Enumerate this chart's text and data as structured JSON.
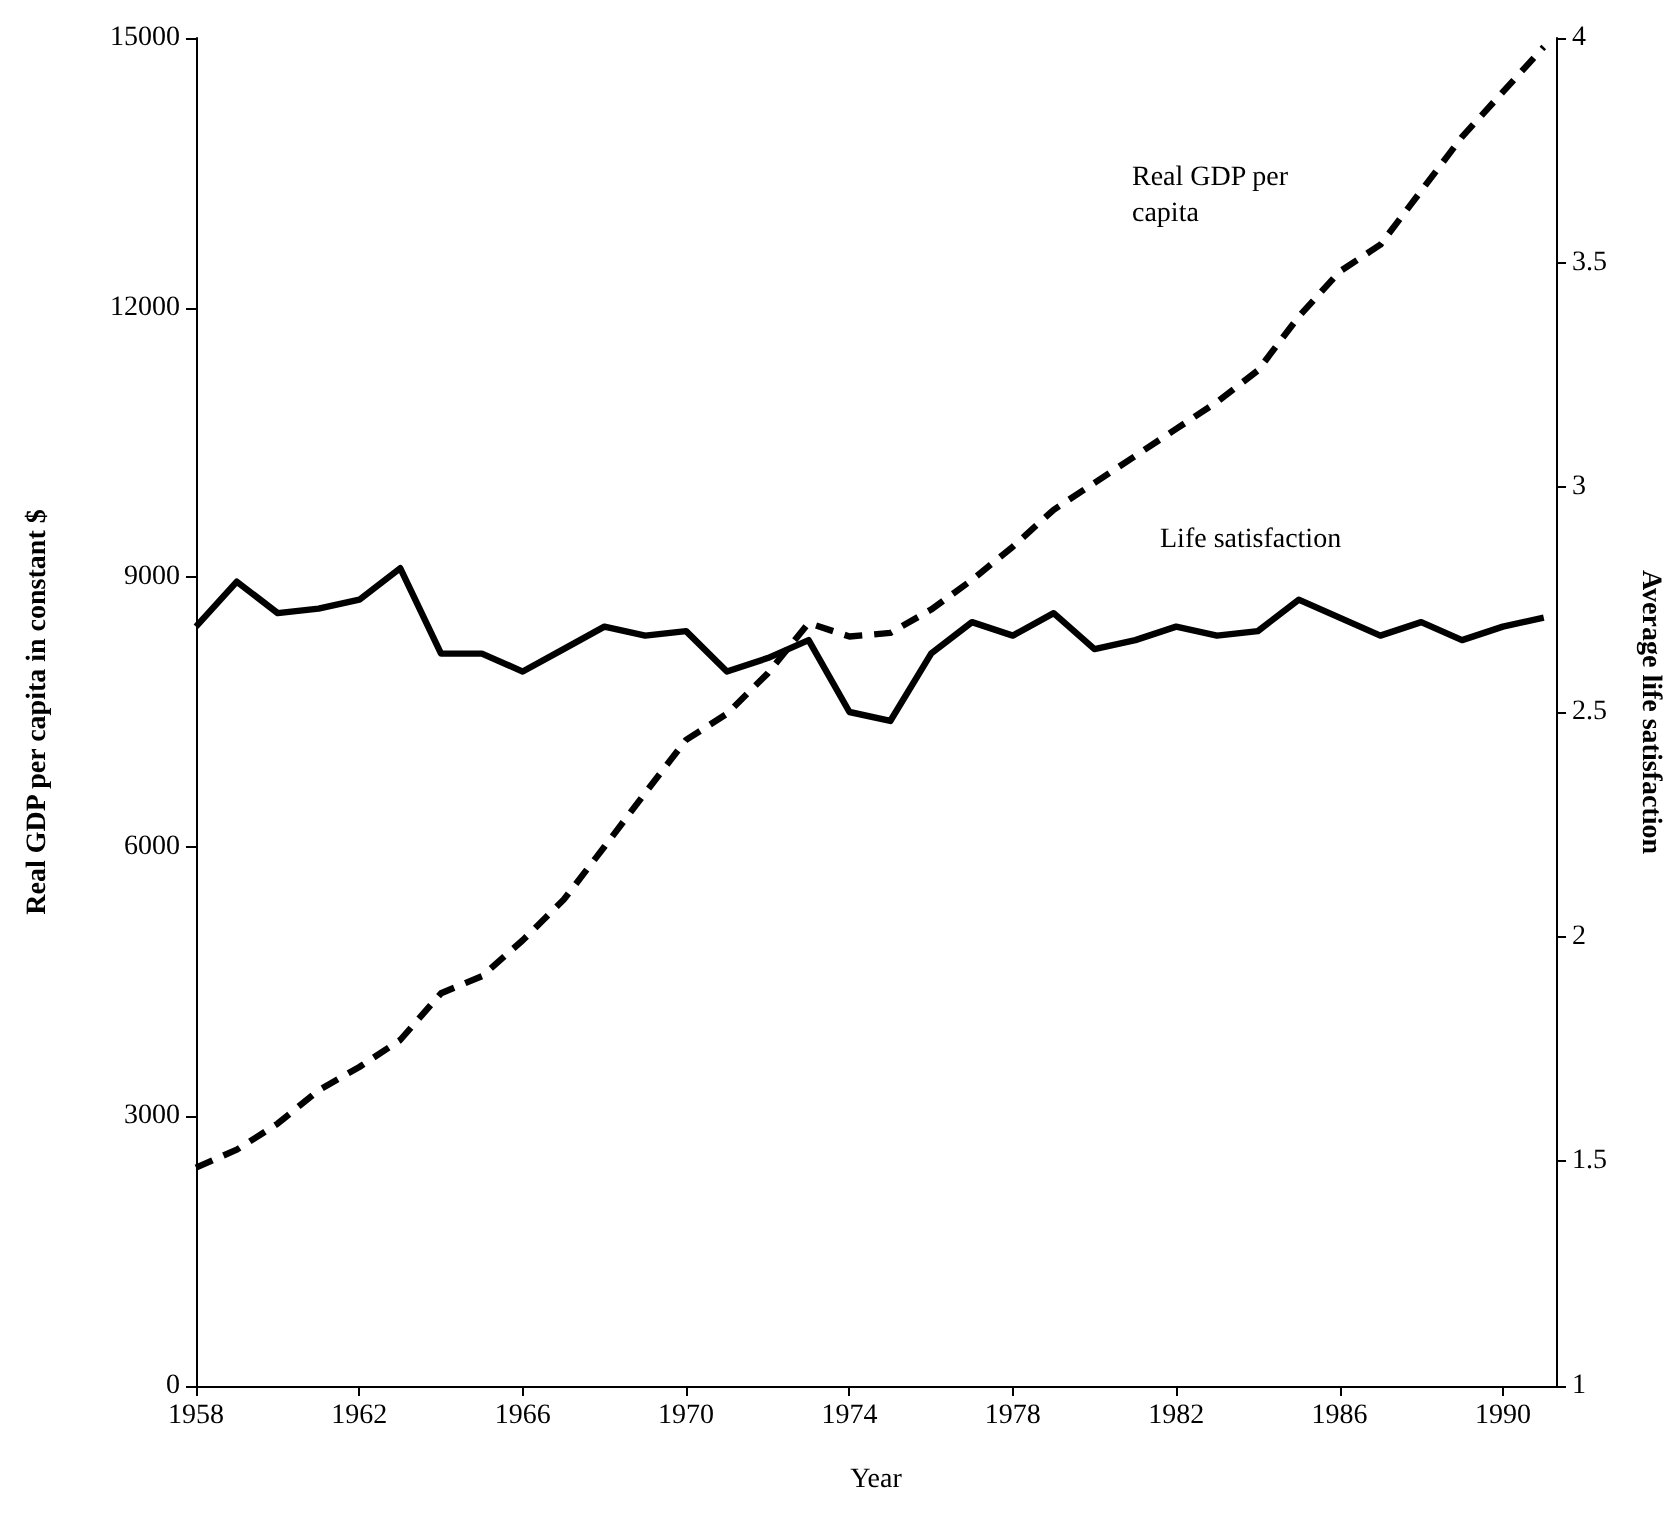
{
  "chart_data": {
    "type": "line",
    "xlabel": "Year",
    "ylabel": "Real GDP per capita in constant $",
    "y2label": "Average life satisfaction",
    "x": [
      1958,
      1959,
      1960,
      1961,
      1962,
      1963,
      1964,
      1965,
      1966,
      1967,
      1968,
      1969,
      1970,
      1971,
      1972,
      1973,
      1974,
      1975,
      1976,
      1977,
      1978,
      1979,
      1980,
      1981,
      1982,
      1983,
      1984,
      1985,
      1986,
      1987,
      1988,
      1989,
      1990,
      1991
    ],
    "series": [
      {
        "name": "Real GDP per capita",
        "color": "#000000",
        "line_style": "dashed",
        "values": [
          2430,
          2630,
          2920,
          3290,
          3550,
          3850,
          4370,
          4560,
          4960,
          5410,
          6000,
          6600,
          7190,
          7480,
          7930,
          8490,
          8340,
          8380,
          8640,
          8970,
          9340,
          9750,
          10050,
          10350,
          10650,
          10950,
          11300,
          11900,
          12400,
          12700,
          13300,
          13900,
          14400,
          14900
        ]
      },
      {
        "name": "Life satisfaction",
        "color": "#000000",
        "line_style": "solid",
        "axis": "y2",
        "values": [
          2.69,
          2.79,
          2.72,
          2.73,
          2.75,
          2.82,
          2.63,
          2.63,
          2.59,
          2.64,
          2.69,
          2.67,
          2.68,
          2.59,
          2.62,
          2.66,
          2.5,
          2.48,
          2.63,
          2.7,
          2.67,
          2.72,
          2.64,
          2.66,
          2.69,
          2.67,
          2.68,
          2.75,
          2.71,
          2.67,
          2.7,
          2.66,
          2.69,
          2.71
        ]
      }
    ],
    "xlim": [
      1958,
      1991.3
    ],
    "xticks": [
      1958,
      1962,
      1966,
      1970,
      1974,
      1978,
      1982,
      1986,
      1990
    ],
    "ylim": [
      0,
      15000
    ],
    "yticks": [
      0,
      3000,
      6000,
      9000,
      12000,
      15000
    ],
    "y2lim": [
      1,
      4
    ],
    "y2ticks": [
      1,
      1.5,
      2,
      2.5,
      3,
      3.5,
      4
    ],
    "grid": false,
    "legend": false,
    "marker": "none"
  }
}
